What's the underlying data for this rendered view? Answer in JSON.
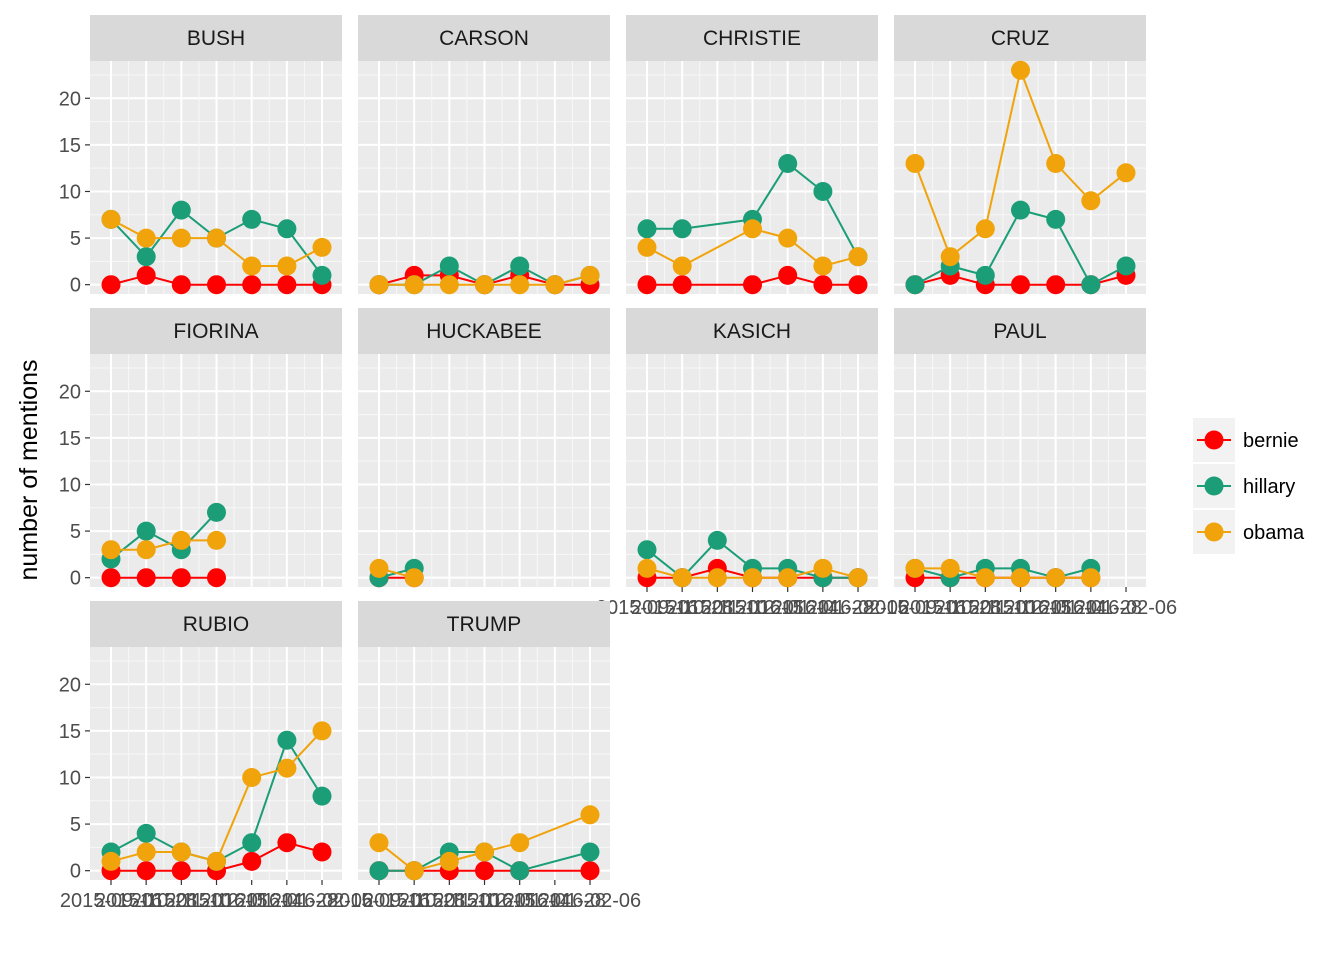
{
  "chart_data": {
    "type": "line",
    "ylabel": "number of mentions",
    "xlabel": "",
    "ylim": [
      -1,
      24
    ],
    "y_ticks": [
      0,
      5,
      10,
      15,
      20
    ],
    "grid": true,
    "legend_placement": "right",
    "x": [
      "2015-09-16",
      "2015-10-28",
      "2015-11-10",
      "2015-12-15",
      "2016-01-14",
      "2016-01-28",
      "2016-02-06"
    ],
    "x_tick_labels": [
      "2015-09-16",
      "2015-10-28",
      "2015-11-10",
      "2015-12-15",
      "2016-01-14",
      "2016-01-28",
      "2016-02-06"
    ],
    "series": [
      {
        "name": "bernie",
        "color": "#ff0000"
      },
      {
        "name": "hillary",
        "color": "#1b9e77"
      },
      {
        "name": "obama",
        "color": "#f0a30a"
      }
    ],
    "panels": [
      {
        "title": "BUSH",
        "bernie": [
          0,
          1,
          0,
          0,
          0,
          0,
          0
        ],
        "hillary": [
          7,
          3,
          8,
          5,
          7,
          6,
          1
        ],
        "obama": [
          7,
          5,
          5,
          5,
          2,
          2,
          4
        ]
      },
      {
        "title": "CARSON",
        "bernie": [
          0,
          1,
          1,
          0,
          1,
          0,
          0
        ],
        "hillary": [
          0,
          0,
          2,
          0,
          2,
          0,
          1
        ],
        "obama": [
          0,
          0,
          0,
          0,
          0,
          0,
          1
        ]
      },
      {
        "title": "CHRISTIE",
        "bernie": [
          0,
          0,
          null,
          0,
          1,
          0,
          0
        ],
        "hillary": [
          6,
          6,
          null,
          7,
          13,
          10,
          3
        ],
        "obama": [
          4,
          2,
          null,
          6,
          5,
          2,
          3
        ]
      },
      {
        "title": "CRUZ",
        "bernie": [
          0,
          1,
          0,
          0,
          0,
          0,
          1
        ],
        "hillary": [
          0,
          2,
          1,
          8,
          7,
          0,
          2
        ],
        "obama": [
          13,
          3,
          6,
          23,
          13,
          9,
          12
        ]
      },
      {
        "title": "FIORINA",
        "bernie": [
          0,
          0,
          0,
          0,
          null,
          null,
          null
        ],
        "hillary": [
          2,
          5,
          3,
          7,
          null,
          null,
          null
        ],
        "obama": [
          3,
          3,
          4,
          4,
          null,
          null,
          null
        ]
      },
      {
        "title": "HUCKABEE",
        "bernie": [
          0,
          0,
          null,
          null,
          null,
          null,
          null
        ],
        "hillary": [
          0,
          1,
          null,
          null,
          null,
          null,
          null
        ],
        "obama": [
          1,
          0,
          null,
          null,
          null,
          null,
          null
        ]
      },
      {
        "title": "KASICH",
        "bernie": [
          0,
          0,
          1,
          0,
          0,
          0,
          0
        ],
        "hillary": [
          3,
          0,
          4,
          1,
          1,
          0,
          0
        ],
        "obama": [
          1,
          0,
          0,
          0,
          0,
          1,
          0
        ]
      },
      {
        "title": "PAUL",
        "bernie": [
          0,
          0,
          0,
          0,
          0,
          0,
          null
        ],
        "hillary": [
          1,
          0,
          1,
          1,
          0,
          1,
          null
        ],
        "obama": [
          1,
          1,
          0,
          0,
          0,
          0,
          null
        ]
      },
      {
        "title": "RUBIO",
        "bernie": [
          0,
          0,
          0,
          0,
          1,
          3,
          2
        ],
        "hillary": [
          2,
          4,
          2,
          1,
          3,
          14,
          8
        ],
        "obama": [
          1,
          2,
          2,
          1,
          10,
          11,
          15
        ]
      },
      {
        "title": "TRUMP",
        "bernie": [
          0,
          0,
          0,
          0,
          0,
          null,
          0
        ],
        "hillary": [
          0,
          0,
          2,
          2,
          0,
          null,
          2
        ],
        "obama": [
          3,
          0,
          1,
          2,
          3,
          null,
          6
        ]
      }
    ]
  }
}
